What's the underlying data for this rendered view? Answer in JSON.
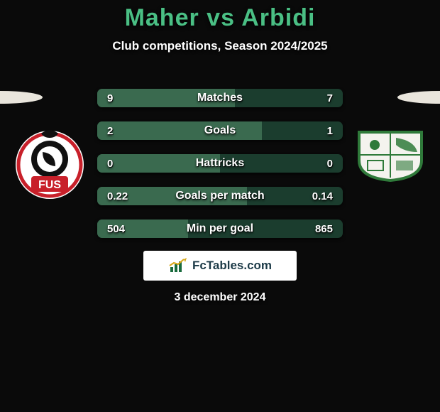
{
  "title_color": "#4abf84",
  "title_left": "Maher",
  "title_mid": "vs",
  "title_right": "Arbidi",
  "subtitle": "Club competitions, Season 2024/2025",
  "date": "3 december 2024",
  "logo_text": "FcTables.com",
  "bars": {
    "bg_dark": "#1b3d2e",
    "bg_light": "#3a6a4f",
    "items": [
      {
        "label": "Matches",
        "left": "9",
        "right": "7",
        "leftPct": 56
      },
      {
        "label": "Goals",
        "left": "2",
        "right": "1",
        "leftPct": 67
      },
      {
        "label": "Hattricks",
        "left": "0",
        "right": "0",
        "leftPct": 50
      },
      {
        "label": "Goals per match",
        "left": "0.22",
        "right": "0.14",
        "leftPct": 61
      },
      {
        "label": "Min per goal",
        "left": "504",
        "right": "865",
        "leftPct": 37
      }
    ]
  },
  "left_club": {
    "bg": "#ffffff",
    "accent": "#c8202a",
    "text": "#111",
    "label": "FUS"
  },
  "right_club": {
    "bg": "#ffffff",
    "accent": "#2f7a3a"
  }
}
